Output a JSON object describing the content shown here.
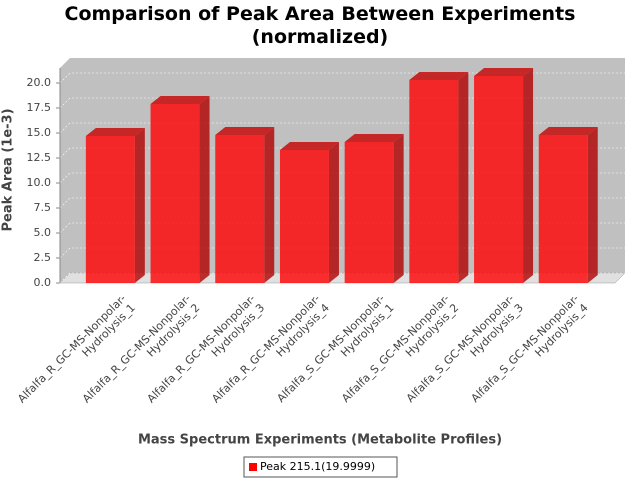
{
  "chart_data": {
    "type": "bar3d",
    "title": "Comparison of Peak Area Between Experiments (normalized)",
    "xlabel": "Mass Spectrum Experiments (Metabolite Profiles)",
    "ylabel": "Peak Area (1e-3)",
    "categories": [
      "Alfalfa_R_GC-MS-Nonpolar-Hydrolysis_1",
      "Alfalfa_R_GC-MS-Nonpolar-Hydrolysis_2",
      "Alfalfa_R_GC-MS-Nonpolar-Hydrolysis_3",
      "Alfalfa_R_GC-MS-Nonpolar-Hydrolysis_4",
      "Alfalfa_S_GC-MS-Nonpolar-Hydrolysis_1",
      "Alfalfa_S_GC-MS-Nonpolar-Hydrolysis_2",
      "Alfalfa_S_GC-MS-Nonpolar-Hydrolysis_3",
      "Alfalfa_S_GC-MS-Nonpolar-Hydrolysis_4"
    ],
    "series": [
      {
        "name": "Peak 215.1(19.9999)",
        "color": "#ff0000",
        "values": [
          14.7,
          17.9,
          14.8,
          13.3,
          14.1,
          20.3,
          20.7,
          14.8
        ]
      }
    ],
    "ylim": [
      0,
      21.5
    ],
    "yticks": [
      {
        "value": 0,
        "label": "0.0"
      },
      2.5,
      {
        "value": 5,
        "label": "5.0"
      },
      7.5,
      {
        "value": 10,
        "label": "10.0"
      },
      12.5,
      {
        "value": 15,
        "label": "15.0"
      },
      17.5,
      {
        "value": 20,
        "label": "20.0"
      }
    ],
    "grid": true,
    "legend": "bottom"
  }
}
